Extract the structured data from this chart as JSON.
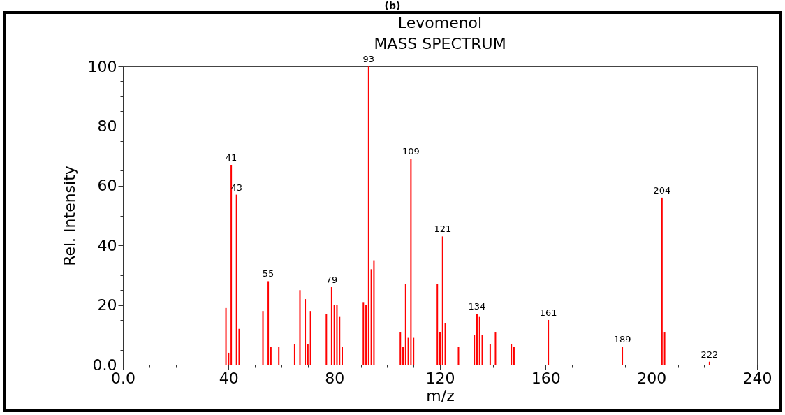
{
  "chart_data": {
    "type": "bar",
    "title": "Levomenol",
    "subtitle": "MASS SPECTRUM",
    "xlabel": "m/z",
    "ylabel": "Rel. Intensity",
    "annotations": [
      "(b)",
      {
        "text": "41",
        "x": 41,
        "y": 67
      },
      {
        "text": "43",
        "x": 43,
        "y": 57
      },
      {
        "text": "55",
        "x": 55,
        "y": 28
      },
      {
        "text": "79",
        "x": 79,
        "y": 26
      },
      {
        "text": "93",
        "x": 93,
        "y": 100
      },
      {
        "text": "109",
        "x": 109,
        "y": 69
      },
      {
        "text": "121",
        "x": 121,
        "y": 43
      },
      {
        "text": "134",
        "x": 134,
        "y": 17
      },
      {
        "text": "161",
        "x": 161,
        "y": 15
      },
      {
        "text": "189",
        "x": 189,
        "y": 6
      },
      {
        "text": "204",
        "x": 204,
        "y": 56
      },
      {
        "text": "222",
        "x": 222,
        "y": 1
      }
    ],
    "x": [
      39,
      40,
      41,
      43,
      44,
      53,
      55,
      56,
      59,
      65,
      67,
      69,
      70,
      71,
      77,
      79,
      80,
      81,
      82,
      83,
      91,
      92,
      93,
      94,
      95,
      105,
      106,
      107,
      108,
      109,
      110,
      119,
      120,
      121,
      122,
      127,
      133,
      134,
      135,
      136,
      139,
      141,
      147,
      148,
      161,
      189,
      204,
      205,
      222
    ],
    "values": [
      19,
      4,
      67,
      57,
      12,
      18,
      28,
      6,
      6,
      7,
      25,
      22,
      7,
      18,
      17,
      26,
      20,
      20,
      16,
      6,
      21,
      20,
      100,
      32,
      35,
      11,
      6,
      27,
      9,
      69,
      9,
      27,
      11,
      43,
      14,
      6,
      10,
      17,
      16,
      10,
      7,
      11,
      7,
      6,
      15,
      6,
      56,
      11,
      1
    ],
    "color": "#ff0000",
    "grid": false,
    "xlim": [
      0,
      240
    ],
    "xticks": [
      {
        "value": 0,
        "label": "0.0"
      },
      {
        "value": 10,
        "label": null
      },
      {
        "value": 20,
        "label": null
      },
      {
        "value": 30,
        "label": null
      },
      40,
      {
        "value": 50,
        "label": null
      },
      {
        "value": 60,
        "label": null
      },
      {
        "value": 70,
        "label": null
      },
      80,
      {
        "value": 90,
        "label": null
      },
      {
        "value": 100,
        "label": null
      },
      {
        "value": 110,
        "label": null
      },
      120,
      {
        "value": 130,
        "label": null
      },
      {
        "value": 140,
        "label": null
      },
      {
        "value": 150,
        "label": null
      },
      160,
      {
        "value": 170,
        "label": null
      },
      {
        "value": 180,
        "label": null
      },
      {
        "value": 190,
        "label": null
      },
      200,
      {
        "value": 210,
        "label": null
      },
      {
        "value": 220,
        "label": null
      },
      {
        "value": 230,
        "label": null
      },
      240
    ],
    "ylim": [
      0,
      100
    ],
    "yticks": [
      {
        "value": 0,
        "label": "0.0"
      },
      {
        "value": 5,
        "label": null
      },
      {
        "value": 10,
        "label": null
      },
      {
        "value": 15,
        "label": null
      },
      20,
      {
        "value": 25,
        "label": null
      },
      {
        "value": 30,
        "label": null
      },
      {
        "value": 35,
        "label": null
      },
      40,
      {
        "value": 45,
        "label": null
      },
      {
        "value": 50,
        "label": null
      },
      {
        "value": 55,
        "label": null
      },
      60,
      {
        "value": 65,
        "label": null
      },
      {
        "value": 70,
        "label": null
      },
      {
        "value": 75,
        "label": null
      },
      80,
      {
        "value": 85,
        "label": null
      },
      {
        "value": 90,
        "label": null
      },
      {
        "value": 95,
        "label": null
      },
      100
    ]
  }
}
